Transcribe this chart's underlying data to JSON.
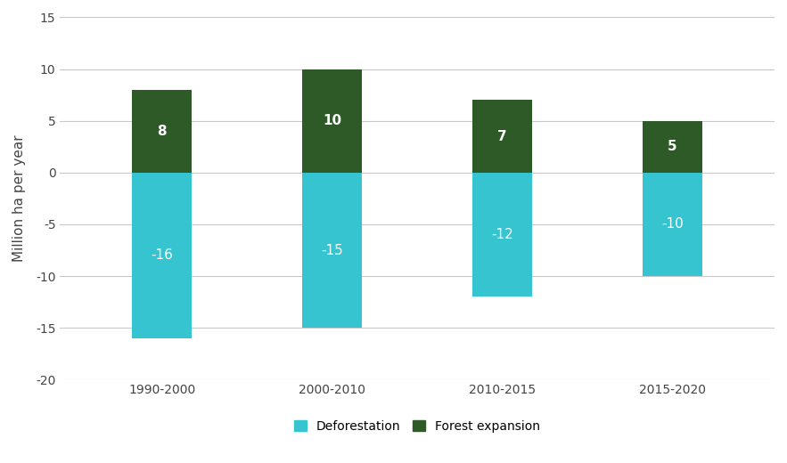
{
  "categories": [
    "1990-2000",
    "2000-2010",
    "2010-2015",
    "2015-2020"
  ],
  "deforestation": [
    -16,
    -15,
    -12,
    -10
  ],
  "forest_expansion": [
    8,
    10,
    7,
    5
  ],
  "deforestation_color": "#35C4D0",
  "forest_expansion_color": "#2D5A27",
  "ylabel": "Million ha per year",
  "ylim": [
    -20,
    15
  ],
  "yticks": [
    -20,
    -15,
    -10,
    -5,
    0,
    5,
    10,
    15
  ],
  "background_color": "#ffffff",
  "grid_color": "#c8c8c8",
  "legend_deforestation": "Deforestation",
  "legend_forest_expansion": "Forest expansion",
  "bar_width": 0.35,
  "label_fontsize": 11,
  "tick_fontsize": 10,
  "legend_fontsize": 10
}
